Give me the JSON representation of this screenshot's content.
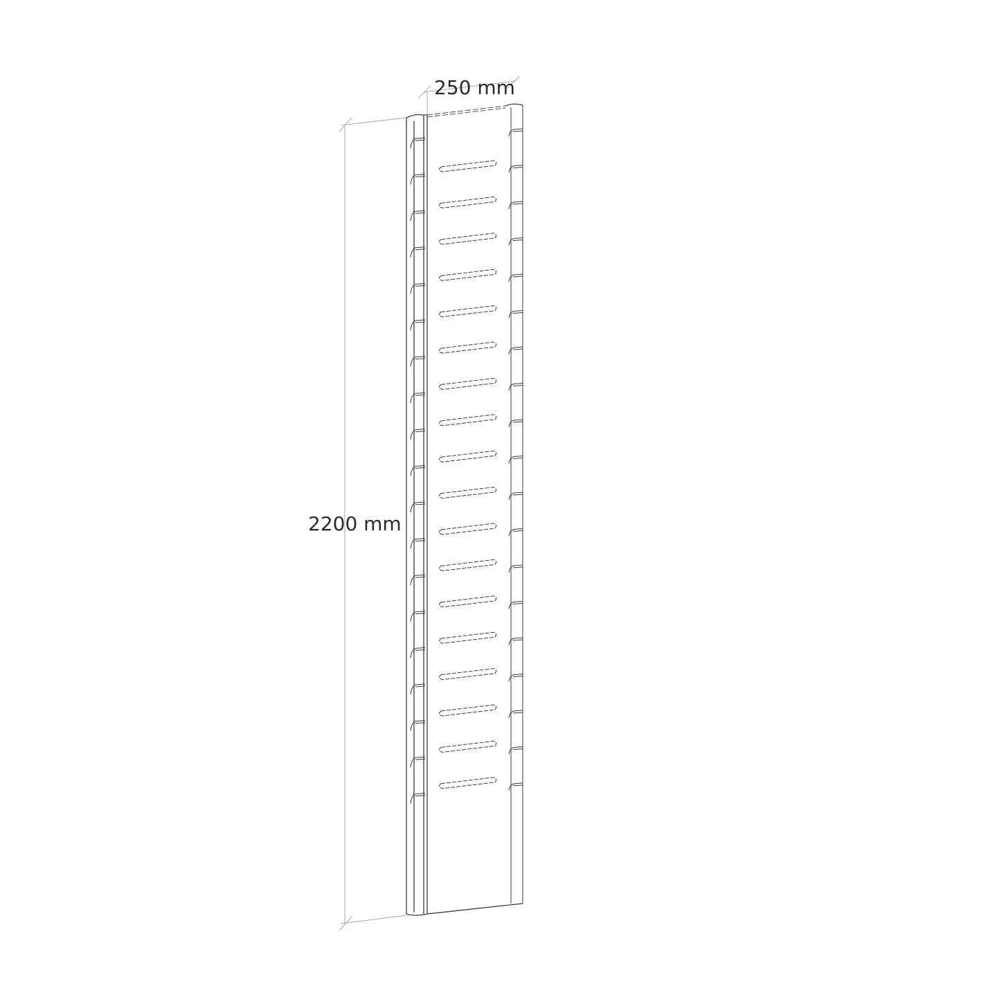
{
  "dimensions": {
    "width_label": "250 mm",
    "height_label": "2200 mm"
  },
  "drawing": {
    "slot_count": 18,
    "left_hook_count": 19,
    "right_hook_count": 19,
    "line_color": "#3a3a3a",
    "dimension_line_color": "#9a9a9a"
  }
}
